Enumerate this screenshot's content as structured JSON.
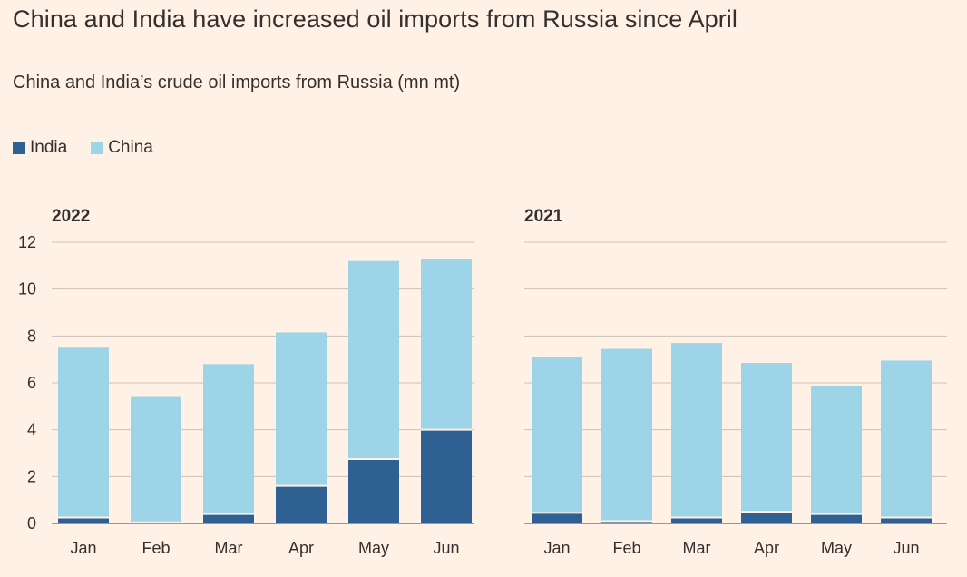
{
  "title": "China and India have increased oil imports from Russia since April",
  "subtitle": "China and India’s crude oil imports from Russia (mn mt)",
  "colors": {
    "india": "#2e6094",
    "china": "#9dd4e8",
    "background": "#fff1e5"
  },
  "legend": [
    {
      "label": "India",
      "color": "#2e6094"
    },
    {
      "label": "China",
      "color": "#9dd4e8"
    }
  ],
  "chart_data": [
    {
      "type": "bar",
      "stacked": true,
      "title": "2022",
      "categories": [
        "Jan",
        "Feb",
        "Mar",
        "Apr",
        "May",
        "Jun"
      ],
      "series": [
        {
          "name": "India",
          "values": [
            0.25,
            0.05,
            0.4,
            1.6,
            2.75,
            4.0
          ]
        },
        {
          "name": "China",
          "values": [
            7.25,
            5.35,
            6.4,
            6.55,
            8.45,
            7.3
          ]
        }
      ],
      "ylim": [
        0,
        12
      ],
      "yticks": [
        0,
        2,
        4,
        6,
        8,
        10,
        12
      ],
      "grid": true,
      "legend_position": "top-left"
    },
    {
      "type": "bar",
      "stacked": true,
      "title": "2021",
      "categories": [
        "Jan",
        "Feb",
        "Mar",
        "Apr",
        "May",
        "Jun"
      ],
      "series": [
        {
          "name": "India",
          "values": [
            0.45,
            0.1,
            0.25,
            0.5,
            0.4,
            0.25
          ]
        },
        {
          "name": "China",
          "values": [
            6.65,
            7.35,
            7.45,
            6.35,
            5.45,
            6.7
          ]
        }
      ],
      "ylim": [
        0,
        12
      ],
      "yticks": [
        0,
        2,
        4,
        6,
        8,
        10,
        12
      ],
      "grid": true
    }
  ]
}
